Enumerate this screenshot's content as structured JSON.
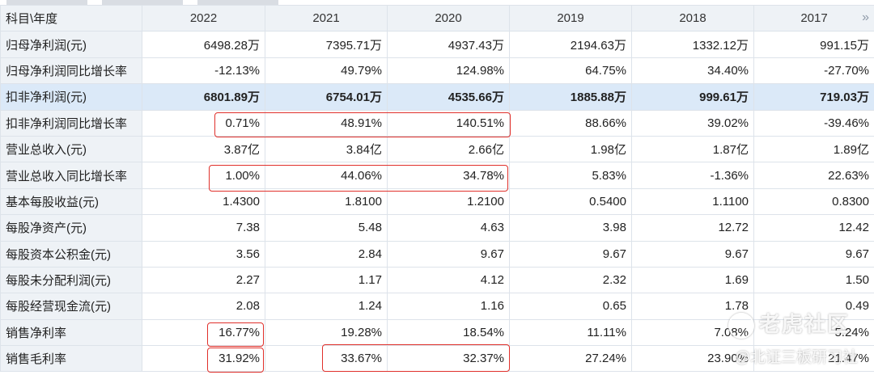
{
  "header": {
    "corner_label": "科目\\年度",
    "years": [
      "2022",
      "2021",
      "2020",
      "2019",
      "2018",
      "2017"
    ],
    "next_icon": "»"
  },
  "rows": [
    {
      "label": "归母净利润(元)",
      "values": [
        "6498.28万",
        "7395.71万",
        "4937.43万",
        "2194.63万",
        "1332.12万",
        "991.15万"
      ]
    },
    {
      "label": "归母净利润同比增长率",
      "values": [
        "-12.13%",
        "49.79%",
        "124.98%",
        "64.75%",
        "34.40%",
        "-27.70%"
      ]
    },
    {
      "label": "扣非净利润(元)",
      "values": [
        "6801.89万",
        "6754.01万",
        "4535.66万",
        "1885.88万",
        "999.61万",
        "719.03万"
      ],
      "emphasis": true
    },
    {
      "label": "扣非净利润同比增长率",
      "values": [
        "0.71%",
        "48.91%",
        "140.51%",
        "88.66%",
        "39.02%",
        "-39.46%"
      ]
    },
    {
      "label": "营业总收入(元)",
      "values": [
        "3.87亿",
        "3.84亿",
        "2.66亿",
        "1.98亿",
        "1.87亿",
        "1.89亿"
      ]
    },
    {
      "label": "营业总收入同比增长率",
      "values": [
        "1.00%",
        "44.06%",
        "34.78%",
        "5.83%",
        "-1.36%",
        "22.63%"
      ]
    },
    {
      "label": "基本每股收益(元)",
      "values": [
        "1.4300",
        "1.8100",
        "1.2100",
        "0.5400",
        "1.1100",
        "0.8300"
      ]
    },
    {
      "label": "每股净资产(元)",
      "values": [
        "7.38",
        "5.48",
        "4.63",
        "3.98",
        "12.72",
        "12.42"
      ]
    },
    {
      "label": "每股资本公积金(元)",
      "values": [
        "3.56",
        "2.84",
        "9.67",
        "9.67",
        "9.67",
        "9.67"
      ]
    },
    {
      "label": "每股未分配利润(元)",
      "values": [
        "2.27",
        "1.17",
        "4.12",
        "2.32",
        "1.69",
        "1.50"
      ]
    },
    {
      "label": "每股经营现金流(元)",
      "values": [
        "2.08",
        "1.24",
        "1.16",
        "0.65",
        "1.78",
        "0.49"
      ]
    },
    {
      "label": "销售净利率",
      "values": [
        "16.77%",
        "19.28%",
        "18.54%",
        "11.11%",
        "7.08%",
        "5.24%"
      ]
    },
    {
      "label": "销售毛利率",
      "values": [
        "31.92%",
        "33.67%",
        "32.37%",
        "27.24%",
        "23.90%",
        "21.47%"
      ]
    }
  ],
  "watermark": {
    "logo_text": "老虎社区",
    "handle": "@北证三板研习社"
  },
  "colors": {
    "header_bg": "#eef2f6",
    "emphasis_row_bg": "#dbe9f8",
    "highlight_box": "#e0302b"
  }
}
